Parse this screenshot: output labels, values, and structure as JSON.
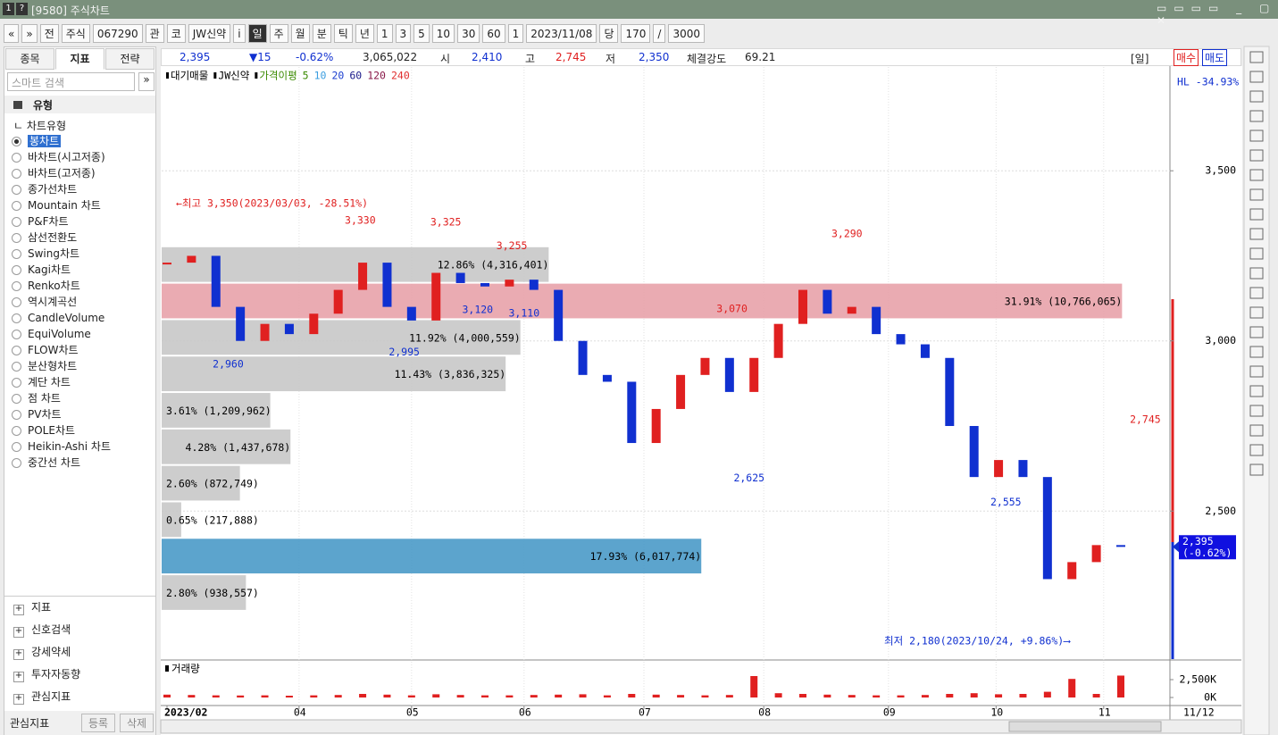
{
  "window": {
    "title": "[9580] 주식차트"
  },
  "toolbar": {
    "items": [
      "«",
      "»",
      "전",
      "주식",
      "067290",
      "관",
      "코",
      "JW신약",
      "i",
      "일",
      "주",
      "월",
      "분",
      "틱",
      "년",
      "1",
      "3",
      "5",
      "10",
      "30",
      "60",
      "1",
      "2023/11/08",
      "당",
      "170",
      "/",
      "3000"
    ]
  },
  "left_panel": {
    "tabs": [
      "종목",
      "지표",
      "전략"
    ],
    "search": "스마트 검색",
    "group": "유형",
    "subgroup": "차트유형",
    "items": [
      "봉차트",
      "바차트(시고저종)",
      "바차트(고저종)",
      "종가선차트",
      "Mountain 차트",
      "P&F차트",
      "삼선전환도",
      "Swing차트",
      "Kagi차트",
      "Renko차트",
      "역시계곡선",
      "CandleVolume",
      "EquiVolume",
      "FLOW차트",
      "분산형차트",
      "계단 차트",
      "점 차트",
      "PV차트",
      "POLE차트",
      "Heikin-Ashi 차트",
      "중간선 차트"
    ],
    "sections": [
      "지표",
      "신호검색",
      "강세약세",
      "투자자동향",
      "관심지표"
    ],
    "footer": {
      "title": "관심지표",
      "buttons": [
        "등록",
        "삭제"
      ]
    }
  },
  "info_bar": {
    "price": "2,395",
    "change": "▼15",
    "rate": "-0.62%",
    "volume": "3,065,022",
    "open_label": "시",
    "open": "2,410",
    "high_label": "고",
    "high": "2,745",
    "low_label": "저",
    "low": "2,350",
    "strength_label": "체결강도",
    "strength": "69.21",
    "period": "[일]",
    "buy": "매수",
    "sell": "매도"
  },
  "chart_data": {
    "type": "candlestick",
    "legend": [
      {
        "name": "대기매물",
        "color": "#000000"
      },
      {
        "name": "JW신약",
        "color": "#000000"
      },
      {
        "name": "가격이평",
        "color": "#3a8a00"
      },
      {
        "name": "5",
        "color": "#3a8a00"
      },
      {
        "name": "10",
        "color": "#3c9ee0"
      },
      {
        "name": "20",
        "color": "#1b3fd0"
      },
      {
        "name": "60",
        "color": "#1a1a8a"
      },
      {
        "name": "120",
        "color": "#8a1a4a"
      },
      {
        "name": "240",
        "color": "#e03030"
      }
    ],
    "values": [
      3230,
      3250,
      3100,
      3000,
      3050,
      3020,
      3080,
      3150,
      3230,
      3100,
      3060,
      3200,
      3170,
      3160,
      3180,
      3150,
      3000,
      2900,
      2880,
      2700,
      2800,
      2900,
      2950,
      2850,
      2950,
      3050,
      3150,
      3080,
      3100,
      3020,
      2990,
      2950,
      2750,
      2600,
      2650,
      2600,
      2300,
      2350,
      2400,
      2395
    ],
    "up_color": "#e02020",
    "down_color": "#1030d0",
    "xlim": [
      0,
      39
    ],
    "xticks": [
      {
        "value": 0,
        "label": "2023/02"
      },
      {
        "value": 5.4,
        "label": "04"
      },
      {
        "value": 10,
        "label": "05"
      },
      {
        "value": 14.6,
        "label": "06"
      },
      {
        "value": 19.5,
        "label": "07"
      },
      {
        "value": 24.4,
        "label": "08"
      },
      {
        "value": 29.5,
        "label": "09"
      },
      {
        "value": 33.9,
        "label": "10"
      },
      {
        "value": 38.3,
        "label": "11"
      }
    ],
    "ylim": [
      2065,
      3805
    ],
    "yticks": [
      {
        "value": 2500,
        "label": "2,500"
      },
      {
        "value": 3000,
        "label": "3,000"
      },
      {
        "value": 3500,
        "label": "3,500"
      }
    ],
    "grid": true,
    "hl_label": "HL -34.93%",
    "current": {
      "value": 2395,
      "label": "2,395",
      "change": "(-0.62%)"
    },
    "high_note": "←최고 3,350(2023/03/03, -28.51%)",
    "low_note": "최저 2,180(2023/10/24, +9.86%)⟶",
    "volume_profile": {
      "price_range": [
        2207,
        3278
      ],
      "rows": [
        {
          "pct": 12.86,
          "label": "12.86% (4,316,401)",
          "color": "#c8c8c8"
        },
        {
          "pct": 31.91,
          "label": "31.91% (10,766,065)",
          "color": "#e8a2aa"
        },
        {
          "pct": 11.92,
          "label": "11.92% (4,000,559)",
          "color": "#c8c8c8"
        },
        {
          "pct": 11.43,
          "label": "11.43% (3,836,325)",
          "color": "#c8c8c8"
        },
        {
          "pct": 3.61,
          "label": "3.61% (1,209,962)",
          "color": "#c8c8c8"
        },
        {
          "pct": 4.28,
          "label": "4.28% (1,437,678)",
          "color": "#c8c8c8"
        },
        {
          "pct": 2.6,
          "label": "2.60% (872,749)",
          "color": "#c8c8c8"
        },
        {
          "pct": 0.65,
          "label": "0.65% (217,888)",
          "color": "#c8c8c8"
        },
        {
          "pct": 17.93,
          "label": "17.93% (6,017,774)",
          "color": "#4a9ac8"
        },
        {
          "pct": 2.8,
          "label": "2.80% (938,557)",
          "color": "#c8c8c8"
        }
      ]
    },
    "annotations": [
      {
        "text": "3,330",
        "value": 3330,
        "color": "#e02020"
      },
      {
        "text": "3,325",
        "value": 3325,
        "color": "#e02020"
      },
      {
        "text": "3,255",
        "value": 3255,
        "color": "#e02020"
      },
      {
        "text": "3,070",
        "value": 3070,
        "color": "#e02020"
      },
      {
        "text": "3,290",
        "value": 3290,
        "color": "#e02020"
      },
      {
        "text": "2,745",
        "value": 2745,
        "color": "#e02020"
      },
      {
        "text": "2,960",
        "value": 2960,
        "color": "#1030d0"
      },
      {
        "text": "2,995",
        "value": 2995,
        "color": "#1030d0"
      },
      {
        "text": "3,120",
        "value": 3120,
        "color": "#1030d0"
      },
      {
        "text": "3,110",
        "value": 3110,
        "color": "#1030d0"
      },
      {
        "text": "2,625",
        "value": 2625,
        "color": "#1030d0"
      },
      {
        "text": "2,555",
        "value": 2555,
        "color": "#1030d0"
      }
    ],
    "volume": {
      "title": "거래량",
      "values": [
        400000,
        350000,
        300000,
        280000,
        300000,
        250000,
        300000,
        350000,
        500000,
        400000,
        300000,
        450000,
        350000,
        300000,
        300000,
        350000,
        400000,
        450000,
        300000,
        500000,
        400000,
        350000,
        300000,
        350000,
        3000000,
        600000,
        500000,
        400000,
        350000,
        300000,
        300000,
        350000,
        500000,
        600000,
        450000,
        500000,
        800000,
        2600000,
        500000,
        3065022
      ],
      "color": "#e02020",
      "ylim": [
        0,
        5000000
      ],
      "yticks": [
        {
          "value": 0,
          "label": "0K"
        },
        {
          "value": 2500000,
          "label": "2,500K"
        }
      ]
    },
    "date_label": "11/12"
  }
}
